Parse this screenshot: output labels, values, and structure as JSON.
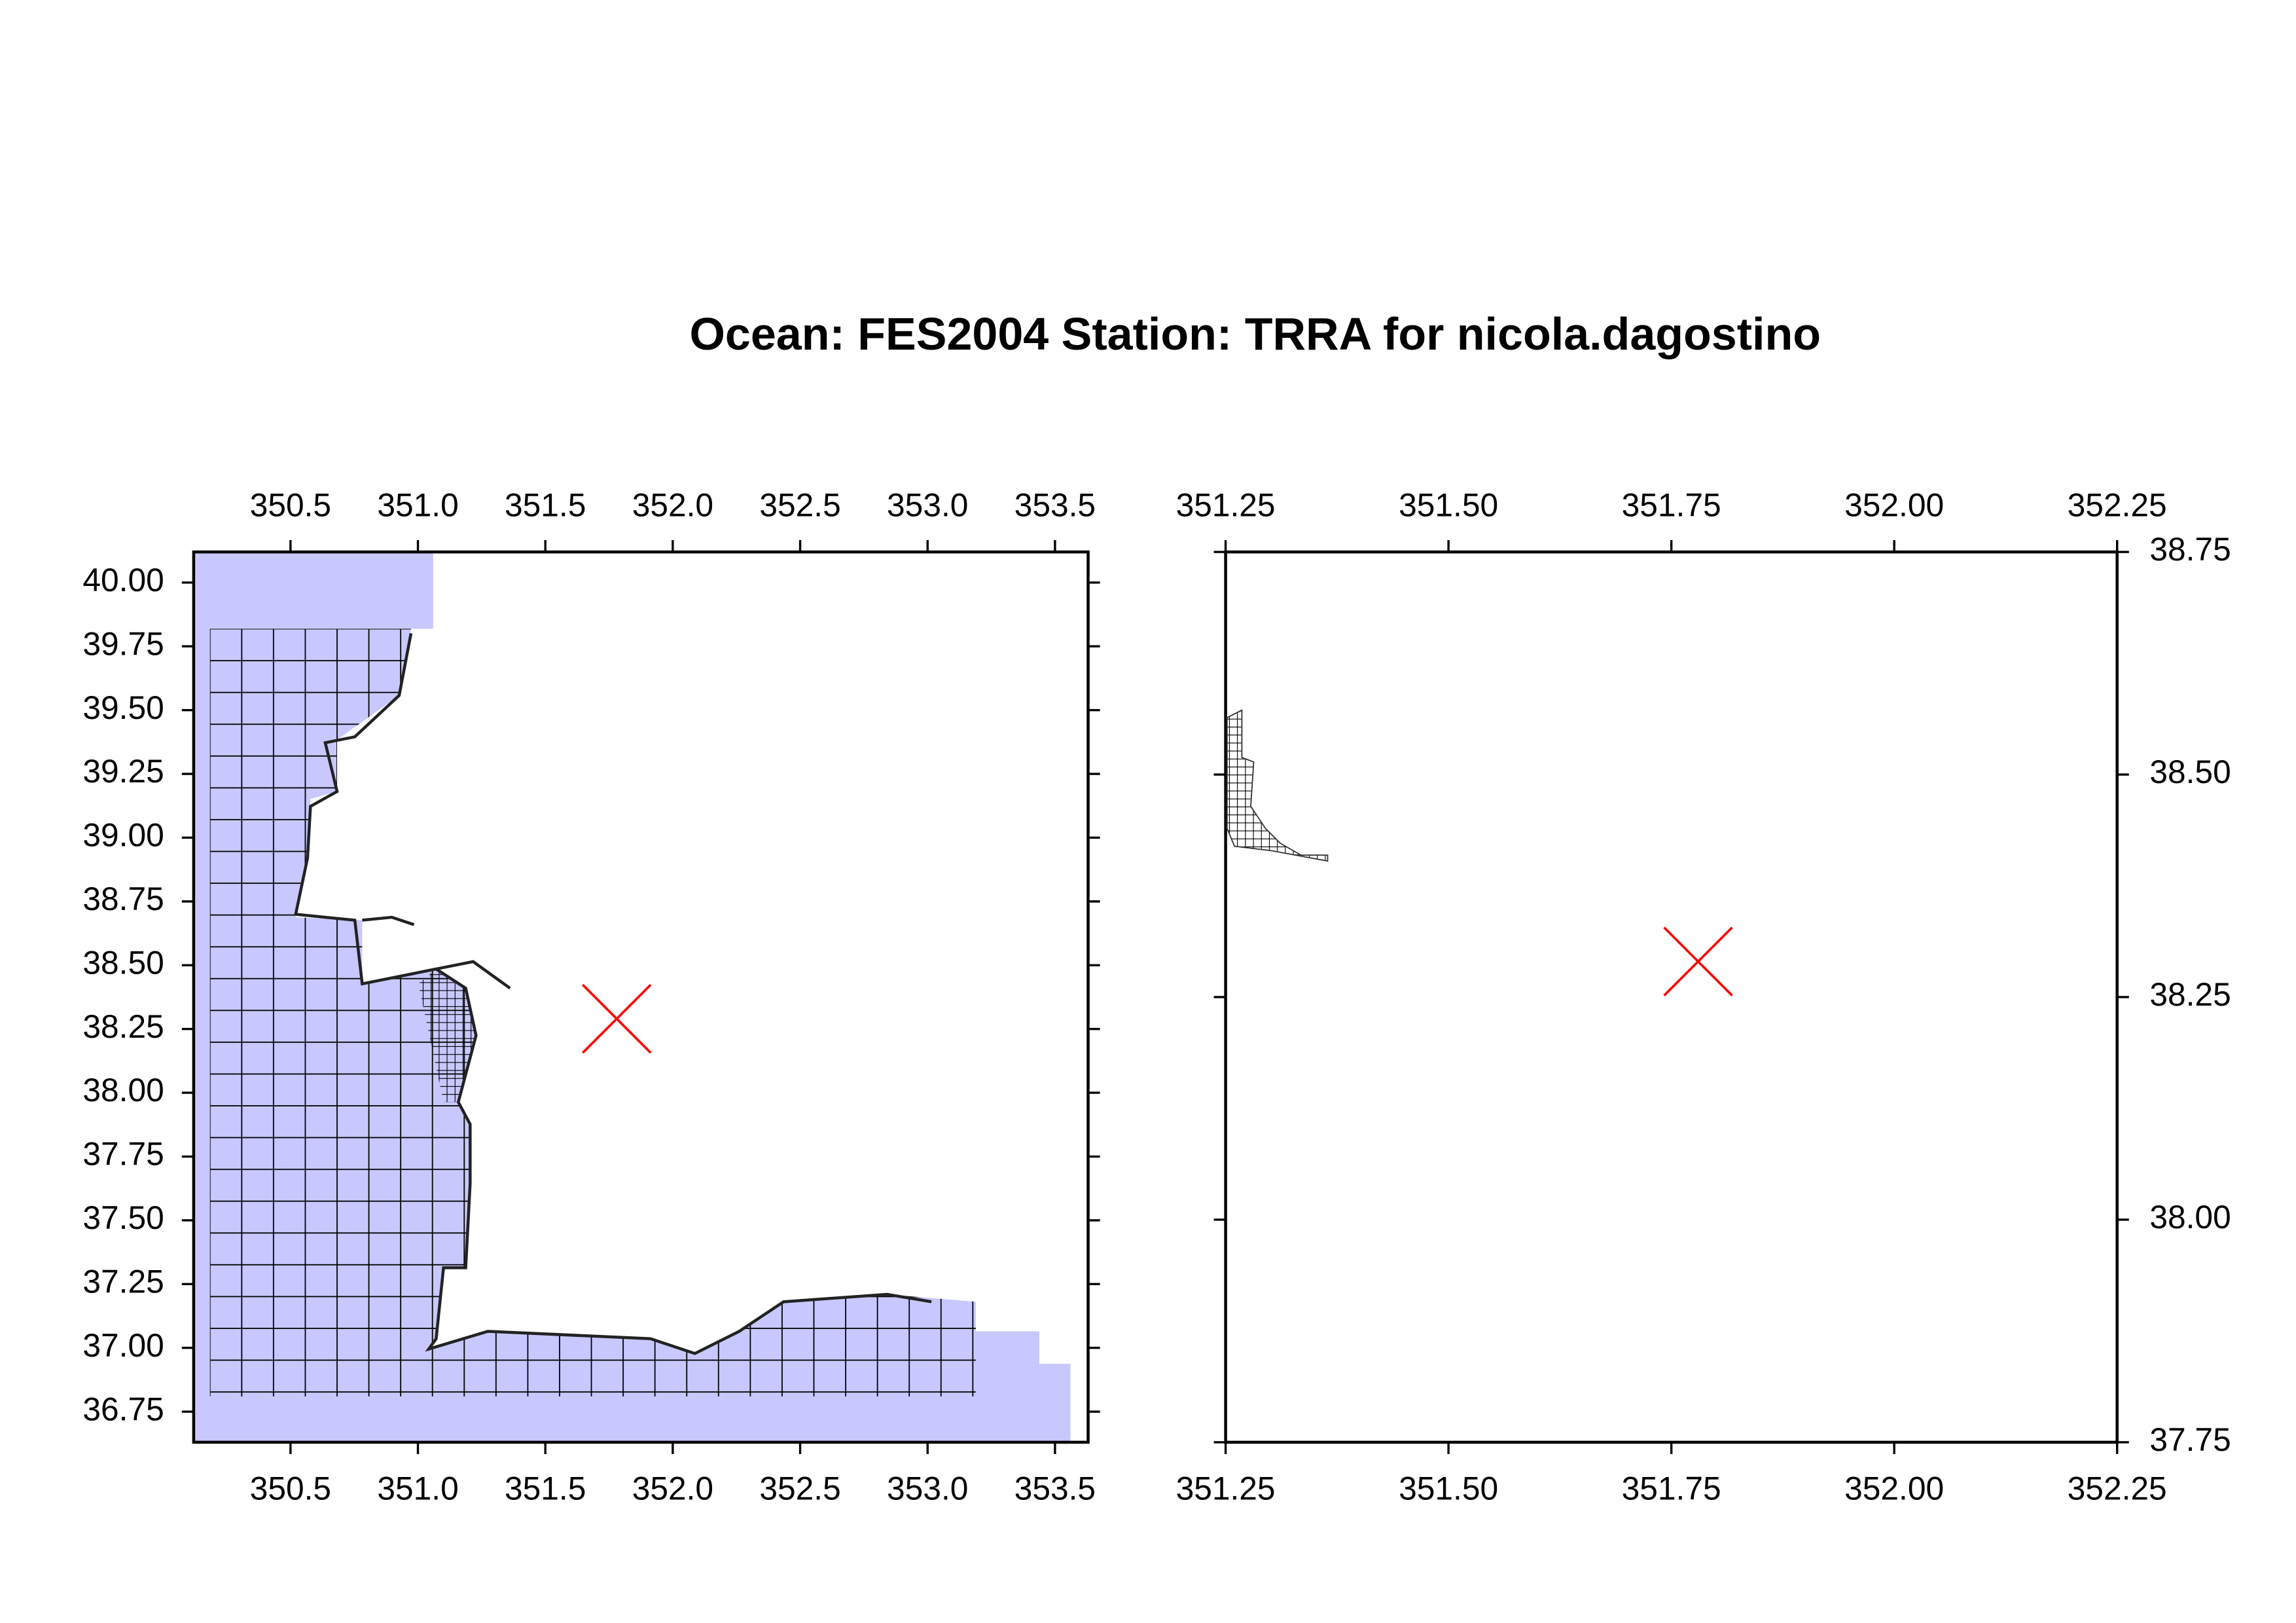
{
  "chart_data": [
    {
      "type": "map",
      "title": "Ocean: FES2004  Station: TRRA  for nicola.dagostino",
      "xlim": [
        350.12,
        353.63
      ],
      "ylim": [
        36.63,
        40.12
      ],
      "xticks": [
        350.5,
        {
          "value": 351,
          "label": "351.0"
        },
        351.5,
        {
          "value": 352,
          "label": "352.0"
        },
        352.5,
        {
          "value": 353,
          "label": "353.0"
        },
        353.5
      ],
      "yticks": [
        {
          "value": 40,
          "label": "40.00"
        },
        39.75,
        {
          "value": 39.5,
          "label": "39.50"
        },
        39.25,
        {
          "value": 39,
          "label": "39.00"
        },
        38.75,
        {
          "value": 38.5,
          "label": "38.50"
        },
        38.25,
        {
          "value": 38,
          "label": "38.00"
        },
        37.75,
        {
          "value": 37.5,
          "label": "37.50"
        },
        37.25,
        {
          "value": 37,
          "label": "37.00"
        },
        36.75
      ],
      "marker": {
        "x": 351.78,
        "y": 38.29
      },
      "marker_color": "#ff0000",
      "ocean_color": "#c8c8ff"
    },
    {
      "type": "map",
      "xlim": [
        351.25,
        352.25
      ],
      "ylim": [
        37.75,
        38.75
      ],
      "xticks": [
        351.25,
        {
          "value": 351.5,
          "label": "351.50"
        },
        351.75,
        {
          "value": 352,
          "label": "352.00"
        },
        352.25
      ],
      "yticks": [
        37.75,
        {
          "value": 38,
          "label": "38.00"
        },
        38.25,
        {
          "value": 38.5,
          "label": "38.50"
        },
        38.75
      ],
      "marker": {
        "x": 351.78,
        "y": 38.29
      },
      "marker_color": "#ff0000"
    }
  ]
}
